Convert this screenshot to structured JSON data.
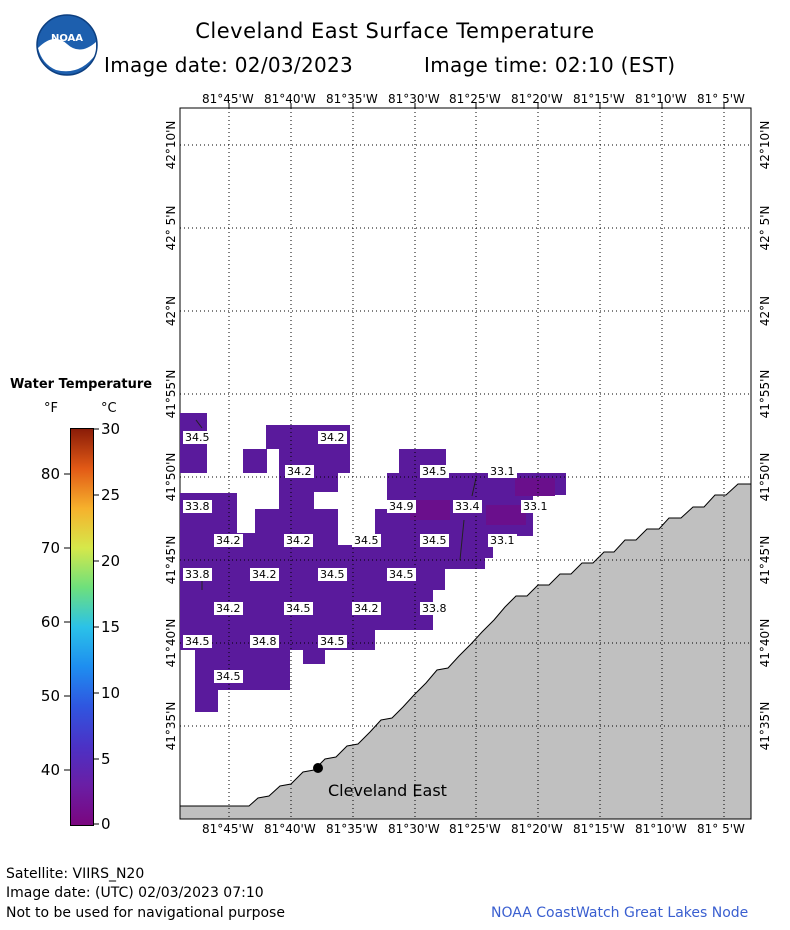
{
  "header": {
    "title": "Cleveland East Surface Temperature",
    "image_date": "Image date: 02/03/2023",
    "image_time": "Image time: 02:10 (EST)"
  },
  "logo": {
    "text": "NOAA"
  },
  "legend": {
    "title": "Water Temperature",
    "unit_f": "°F",
    "unit_c": "°C",
    "f_ticks": [
      "80",
      "70",
      "60",
      "50",
      "40"
    ],
    "c_ticks": [
      "30",
      "25",
      "20",
      "15",
      "10",
      "5",
      "0"
    ]
  },
  "map": {
    "lon_labels": [
      "81°45'W",
      "81°40'W",
      "81°35'W",
      "81°30'W",
      "81°25'W",
      "81°20'W",
      "81°15'W",
      "81°10'W",
      "81° 5'W"
    ],
    "lat_labels": [
      "42°10'N",
      "42° 5'N",
      "42°N",
      "41°55'N",
      "41°50'N",
      "41°45'N",
      "41°40'N",
      "41°35'N"
    ],
    "station_label": "Cleveland East",
    "temp_labels": [
      "34.5",
      "34.2",
      "34.2",
      "34.5",
      "33.1",
      "33.8",
      "34.9",
      "33.4",
      "33.1",
      "34.2",
      "34.2",
      "34.5",
      "34.5",
      "33.1",
      "33.8",
      "34.2",
      "34.5",
      "34.5",
      "34.2",
      "34.5",
      "34.2",
      "33.8",
      "34.5",
      "34.8",
      "34.5",
      "34.5"
    ],
    "colors": {
      "water": "#5a1a9c",
      "water_dark": "#6a0f8c",
      "land": "#c0c0c0",
      "grid": "#000000"
    }
  },
  "footer": {
    "satellite": "Satellite: VIIRS_N20",
    "utc_date": "Image date: (UTC) 02/03/2023  07:10",
    "disclaimer": "Not to be used for navigational purpose",
    "credit": "NOAA CoastWatch Great Lakes Node"
  }
}
